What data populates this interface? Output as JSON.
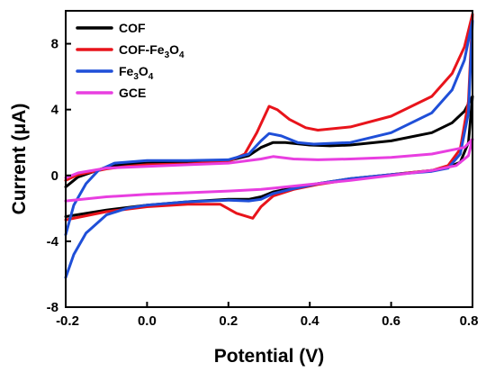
{
  "chart_data": {
    "type": "line",
    "title": "",
    "xlabel": "Potential (V)",
    "ylabel": "Current (μA)",
    "xlim": [
      -0.2,
      0.8
    ],
    "ylim": [
      -8,
      10
    ],
    "xticks": [
      -0.2,
      0.0,
      0.2,
      0.4,
      0.6,
      0.8
    ],
    "xtick_labels": [
      "-0.2",
      "0.0",
      "0.2",
      "0.4",
      "0.6",
      "0.8"
    ],
    "yticks": [
      -8,
      -4,
      0,
      4,
      8
    ],
    "ytick_labels": [
      "-8",
      "-4",
      "0",
      "4",
      "8"
    ],
    "grid": false,
    "legend_position": "top-left",
    "series": [
      {
        "name": "COF",
        "legend_parts": [
          {
            "t": "COF",
            "sub": false
          }
        ],
        "color": "#000000",
        "forward": [
          [
            -0.2,
            -0.7
          ],
          [
            -0.17,
            -0.1
          ],
          [
            -0.1,
            0.5
          ],
          [
            -0.05,
            0.7
          ],
          [
            0.0,
            0.75
          ],
          [
            0.1,
            0.8
          ],
          [
            0.2,
            0.9
          ],
          [
            0.25,
            1.2
          ],
          [
            0.28,
            1.7
          ],
          [
            0.31,
            2.0
          ],
          [
            0.34,
            2.0
          ],
          [
            0.4,
            1.85
          ],
          [
            0.45,
            1.8
          ],
          [
            0.5,
            1.85
          ],
          [
            0.6,
            2.1
          ],
          [
            0.7,
            2.6
          ],
          [
            0.75,
            3.2
          ],
          [
            0.78,
            3.9
          ],
          [
            0.8,
            4.8
          ]
        ],
        "reverse": [
          [
            0.8,
            4.8
          ],
          [
            0.79,
            2.0
          ],
          [
            0.77,
            0.8
          ],
          [
            0.74,
            0.5
          ],
          [
            0.7,
            0.3
          ],
          [
            0.6,
            0.05
          ],
          [
            0.5,
            -0.2
          ],
          [
            0.42,
            -0.5
          ],
          [
            0.36,
            -0.75
          ],
          [
            0.31,
            -1.0
          ],
          [
            0.28,
            -1.3
          ],
          [
            0.25,
            -1.45
          ],
          [
            0.2,
            -1.45
          ],
          [
            0.1,
            -1.6
          ],
          [
            0.0,
            -1.8
          ],
          [
            -0.1,
            -2.1
          ],
          [
            -0.2,
            -2.5
          ]
        ]
      },
      {
        "name": "COF-Fe3O4",
        "legend_parts": [
          {
            "t": "COF-Fe",
            "sub": false
          },
          {
            "t": "3",
            "sub": true
          },
          {
            "t": "O",
            "sub": false
          },
          {
            "t": "4",
            "sub": true
          }
        ],
        "color": "#e8141b",
        "forward": [
          [
            -0.2,
            -0.3
          ],
          [
            -0.17,
            0.05
          ],
          [
            -0.1,
            0.4
          ],
          [
            -0.05,
            0.55
          ],
          [
            0.0,
            0.65
          ],
          [
            0.1,
            0.7
          ],
          [
            0.2,
            0.85
          ],
          [
            0.24,
            1.3
          ],
          [
            0.27,
            2.6
          ],
          [
            0.3,
            4.2
          ],
          [
            0.32,
            4.0
          ],
          [
            0.35,
            3.4
          ],
          [
            0.39,
            2.9
          ],
          [
            0.42,
            2.75
          ],
          [
            0.5,
            2.95
          ],
          [
            0.6,
            3.6
          ],
          [
            0.7,
            4.8
          ],
          [
            0.75,
            6.2
          ],
          [
            0.78,
            7.8
          ],
          [
            0.8,
            9.8
          ]
        ],
        "reverse": [
          [
            0.8,
            9.8
          ],
          [
            0.79,
            4.5
          ],
          [
            0.77,
            1.6
          ],
          [
            0.74,
            0.6
          ],
          [
            0.7,
            0.3
          ],
          [
            0.6,
            0.05
          ],
          [
            0.5,
            -0.25
          ],
          [
            0.42,
            -0.55
          ],
          [
            0.36,
            -0.85
          ],
          [
            0.31,
            -1.25
          ],
          [
            0.28,
            -1.9
          ],
          [
            0.26,
            -2.6
          ],
          [
            0.22,
            -2.3
          ],
          [
            0.18,
            -1.75
          ],
          [
            0.1,
            -1.75
          ],
          [
            0.0,
            -1.9
          ],
          [
            -0.1,
            -2.2
          ],
          [
            -0.2,
            -2.7
          ]
        ]
      },
      {
        "name": "Fe3O4",
        "legend_parts": [
          {
            "t": "Fe",
            "sub": false
          },
          {
            "t": "3",
            "sub": true
          },
          {
            "t": "O",
            "sub": false
          },
          {
            "t": "4",
            "sub": true
          }
        ],
        "color": "#1f4fd8",
        "forward": [
          [
            -0.2,
            -3.6
          ],
          [
            -0.18,
            -1.8
          ],
          [
            -0.15,
            -0.5
          ],
          [
            -0.12,
            0.3
          ],
          [
            -0.08,
            0.75
          ],
          [
            0.0,
            0.9
          ],
          [
            0.1,
            0.9
          ],
          [
            0.2,
            0.95
          ],
          [
            0.25,
            1.3
          ],
          [
            0.28,
            2.1
          ],
          [
            0.3,
            2.55
          ],
          [
            0.33,
            2.4
          ],
          [
            0.37,
            2.0
          ],
          [
            0.41,
            1.9
          ],
          [
            0.5,
            2.0
          ],
          [
            0.6,
            2.6
          ],
          [
            0.7,
            3.8
          ],
          [
            0.75,
            5.2
          ],
          [
            0.78,
            7.0
          ],
          [
            0.8,
            9.4
          ]
        ],
        "reverse": [
          [
            0.8,
            9.4
          ],
          [
            0.79,
            3.8
          ],
          [
            0.77,
            1.3
          ],
          [
            0.74,
            0.45
          ],
          [
            0.7,
            0.25
          ],
          [
            0.6,
            0.05
          ],
          [
            0.5,
            -0.2
          ],
          [
            0.42,
            -0.5
          ],
          [
            0.36,
            -0.8
          ],
          [
            0.31,
            -1.1
          ],
          [
            0.28,
            -1.45
          ],
          [
            0.25,
            -1.55
          ],
          [
            0.2,
            -1.5
          ],
          [
            0.1,
            -1.6
          ],
          [
            0.0,
            -1.8
          ],
          [
            -0.05,
            -2.0
          ],
          [
            -0.1,
            -2.4
          ],
          [
            -0.15,
            -3.5
          ],
          [
            -0.18,
            -4.8
          ],
          [
            -0.2,
            -6.2
          ]
        ]
      },
      {
        "name": "GCE",
        "legend_parts": [
          {
            "t": "GCE",
            "sub": false
          }
        ],
        "color": "#e83ee0",
        "forward": [
          [
            -0.2,
            -0.15
          ],
          [
            -0.17,
            0.15
          ],
          [
            -0.1,
            0.45
          ],
          [
            0.0,
            0.55
          ],
          [
            0.1,
            0.65
          ],
          [
            0.2,
            0.75
          ],
          [
            0.28,
            1.0
          ],
          [
            0.31,
            1.15
          ],
          [
            0.36,
            1.0
          ],
          [
            0.42,
            0.95
          ],
          [
            0.5,
            1.0
          ],
          [
            0.6,
            1.1
          ],
          [
            0.7,
            1.3
          ],
          [
            0.78,
            1.7
          ],
          [
            0.8,
            2.2
          ]
        ],
        "reverse": [
          [
            0.8,
            2.2
          ],
          [
            0.79,
            1.2
          ],
          [
            0.76,
            0.6
          ],
          [
            0.7,
            0.3
          ],
          [
            0.6,
            0.0
          ],
          [
            0.5,
            -0.3
          ],
          [
            0.4,
            -0.55
          ],
          [
            0.32,
            -0.75
          ],
          [
            0.28,
            -0.85
          ],
          [
            0.2,
            -0.95
          ],
          [
            0.1,
            -1.05
          ],
          [
            0.0,
            -1.15
          ],
          [
            -0.1,
            -1.3
          ],
          [
            -0.2,
            -1.55
          ]
        ]
      }
    ]
  }
}
